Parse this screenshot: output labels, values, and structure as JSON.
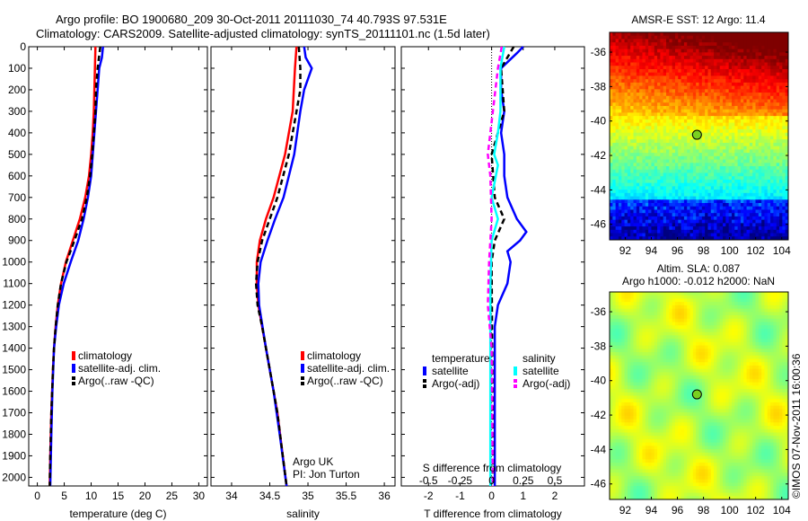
{
  "header": {
    "line1": "Argo profile: BO 1900680_209 30-Oct-2011 20111030_74 40.793S 97.531E",
    "line2": "Climatology: CARS2009. Satellite-adjusted climatology: synTS_20111101.nc (1.5d later)"
  },
  "credits": {
    "argo": "Argo UK",
    "pi": "PI: Jon Turton",
    "imos": "©IMOS 07-Nov-2011 16:00:36"
  },
  "colors": {
    "clim": "#ff0000",
    "sat": "#0000ff",
    "argo": "#000000",
    "ssat": "#00ffff",
    "sargo": "#ff00ff"
  },
  "chart_data": [
    {
      "type": "line",
      "xlabel": "temperature (deg C)",
      "xticks": [
        0,
        5,
        10,
        15,
        20,
        25,
        30
      ],
      "xlim": [
        -1.6,
        31.6
      ],
      "ylim": [
        0,
        2040
      ],
      "yticks": [
        0,
        100,
        200,
        300,
        400,
        500,
        600,
        700,
        800,
        900,
        1000,
        1100,
        1200,
        1300,
        1400,
        1500,
        1600,
        1700,
        1800,
        1900,
        2000
      ],
      "legend": [
        "climatology",
        "satellite-adj. clim.",
        "Argo(..raw -QC)"
      ],
      "series": [
        {
          "name": "climatology",
          "depth": [
            0,
            100,
            200,
            300,
            400,
            500,
            600,
            700,
            800,
            900,
            1000,
            1100,
            1200,
            1300,
            1400,
            1500,
            1700,
            1900,
            2040
          ],
          "values": [
            10.8,
            10.7,
            10.6,
            10.5,
            10.3,
            10.0,
            9.6,
            8.9,
            7.9,
            6.6,
            5.3,
            4.4,
            3.8,
            3.4,
            3.1,
            2.9,
            2.6,
            2.4,
            2.3
          ]
        },
        {
          "name": "satellite-adj. clim.",
          "depth": [
            0,
            50,
            100,
            200,
            300,
            400,
            500,
            600,
            700,
            800,
            900,
            1000,
            1100,
            1200,
            1300,
            1400,
            1600,
            1800,
            2040
          ],
          "values": [
            12.2,
            12.0,
            11.5,
            11.2,
            10.9,
            10.6,
            10.3,
            10.0,
            9.4,
            8.6,
            7.6,
            6.2,
            4.9,
            4.0,
            3.5,
            3.1,
            2.8,
            2.6,
            2.4
          ]
        },
        {
          "name": "Argo(..raw -QC)",
          "depth": [
            0,
            100,
            200,
            300,
            400,
            500,
            600,
            700,
            800,
            900,
            1000,
            1100,
            1200,
            1300,
            1400,
            1500,
            1700,
            1900,
            2040
          ],
          "values": [
            11.7,
            11.2,
            10.9,
            10.8,
            10.5,
            10.2,
            9.8,
            9.2,
            8.3,
            6.9,
            5.4,
            4.4,
            3.8,
            3.4,
            3.1,
            2.9,
            2.6,
            2.4,
            2.3
          ]
        }
      ]
    },
    {
      "type": "line",
      "xlabel": "salinity",
      "xticks": [
        34,
        34.5,
        35,
        35.5,
        36
      ],
      "xlim": [
        33.73,
        36.14
      ],
      "ylim": [
        0,
        2040
      ],
      "legend": [
        "climatology",
        "satellite-adj. clim.",
        "Argo(..raw -QC)"
      ],
      "series": [
        {
          "name": "climatology",
          "depth": [
            0,
            100,
            300,
            500,
            700,
            800,
            900,
            1000,
            1100,
            1200,
            1300,
            1500,
            1700,
            1900,
            2040
          ],
          "values": [
            34.85,
            34.83,
            34.8,
            34.7,
            34.55,
            34.45,
            34.37,
            34.33,
            34.33,
            34.35,
            34.4,
            34.5,
            34.6,
            34.67,
            34.72
          ]
        },
        {
          "name": "satellite-adj. clim.",
          "depth": [
            0,
            50,
            100,
            200,
            300,
            500,
            700,
            800,
            900,
            1000,
            1100,
            1200,
            1400,
            1600,
            1800,
            2040
          ],
          "values": [
            34.95,
            34.97,
            35.05,
            34.95,
            34.9,
            34.82,
            34.68,
            34.57,
            34.47,
            34.38,
            34.35,
            34.36,
            34.45,
            34.55,
            34.63,
            34.72
          ]
        },
        {
          "name": "Argo(..raw -QC)",
          "depth": [
            0,
            100,
            200,
            300,
            500,
            700,
            900,
            1000,
            1100,
            1200,
            1300,
            1500,
            1700,
            1900,
            2040
          ],
          "values": [
            34.88,
            34.9,
            34.9,
            34.85,
            34.75,
            34.6,
            34.4,
            34.34,
            34.32,
            34.34,
            34.4,
            34.5,
            34.6,
            34.67,
            34.72
          ]
        }
      ]
    },
    {
      "type": "line",
      "xlabel": "T difference from climatology",
      "xlabel2": "S difference from climatology",
      "xticks": [
        -2,
        -1,
        0,
        1,
        2
      ],
      "xticks2": [
        "-0.5",
        "-0.25",
        "0",
        "0.25",
        "0.5"
      ],
      "xlim": [
        -2.86,
        2.94
      ],
      "ylim": [
        0,
        2040
      ],
      "legend_titles": [
        "temperature",
        "salinity"
      ],
      "legend": [
        "satellite",
        "Argo(-adj)",
        "satellite",
        "Argo(-adj)"
      ],
      "series": [
        {
          "name": "T satellite",
          "depth": [
            0,
            30,
            100,
            200,
            300,
            400,
            500,
            600,
            700,
            800,
            860,
            900,
            950,
            1000,
            1100,
            1200,
            1300,
            1600,
            2040
          ],
          "values": [
            1.0,
            0.8,
            0.3,
            0.3,
            0.4,
            0.3,
            0.4,
            0.4,
            0.5,
            0.8,
            1.1,
            0.9,
            0.5,
            0.6,
            0.5,
            0.2,
            0.1,
            0.1,
            0.1
          ]
        },
        {
          "name": "T Argo(-adj)",
          "depth": [
            0,
            100,
            300,
            400,
            500,
            700,
            800,
            900,
            1000,
            2040
          ],
          "values": [
            0.7,
            0.3,
            0.4,
            0.2,
            0.0,
            0.1,
            0.4,
            0.1,
            0.0,
            0.05
          ]
        },
        {
          "name": "S satellite",
          "depth": [
            0,
            100,
            300,
            400,
            500,
            550,
            700,
            800,
            900,
            1100,
            2040
          ],
          "values": [
            0.1,
            0.07,
            0.07,
            0.05,
            0.02,
            0.05,
            0.0,
            0.05,
            0.0,
            -0.01,
            -0.01
          ]
        },
        {
          "name": "S Argo(-adj)",
          "depth": [
            0,
            100,
            400,
            500,
            600,
            800,
            1000,
            1200,
            1400,
            2040
          ],
          "values": [
            0.08,
            0.05,
            -0.01,
            -0.03,
            -0.01,
            0.0,
            -0.02,
            -0.03,
            0.0,
            0.01
          ]
        }
      ]
    },
    {
      "type": "heatmap",
      "title": "AMSR-E SST: 12 Argo: 11.4",
      "xticks": [
        92,
        94,
        96,
        98,
        100,
        102,
        104
      ],
      "yticks": [
        -36,
        -38,
        -40,
        -42,
        -44,
        -46
      ],
      "argo_lon": 97.5,
      "argo_lat": -40.8
    },
    {
      "type": "heatmap",
      "title1": "Altim. SLA: 0.087",
      "title2": "Argo h1000: -0.012 h2000: NaN",
      "xticks": [
        92,
        94,
        96,
        98,
        100,
        102,
        104
      ],
      "yticks": [
        -36,
        -38,
        -40,
        -42,
        -44,
        -46
      ],
      "argo_lon": 97.5,
      "argo_lat": -40.8
    }
  ]
}
